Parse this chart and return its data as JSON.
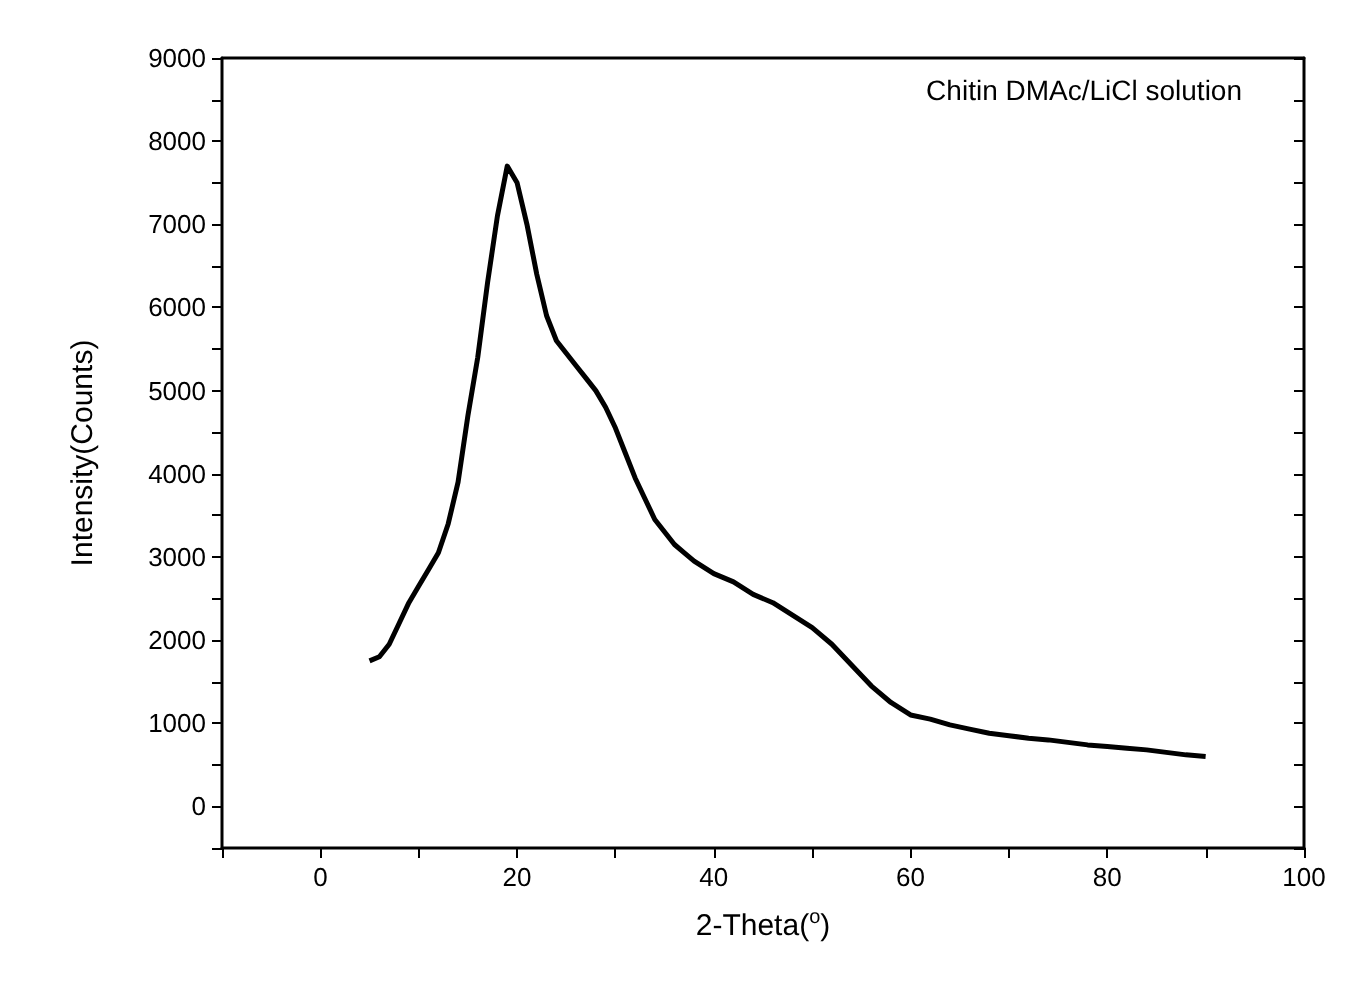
{
  "chart_data": {
    "type": "line",
    "xlabel": "2-Theta($^{o}$)",
    "ylabel": "Intensity(Counts)",
    "annotations": [
      "Chitin DMAc/LiCl solution"
    ],
    "x": [
      5,
      6,
      7,
      8,
      9,
      10,
      11,
      12,
      13,
      14,
      15,
      16,
      17,
      18,
      19,
      20,
      21,
      22,
      23,
      24,
      25,
      26,
      27,
      28,
      29,
      30,
      31,
      32,
      33,
      34,
      35,
      36,
      37,
      38,
      40,
      42,
      44,
      46,
      48,
      50,
      52,
      54,
      56,
      58,
      60,
      62,
      64,
      66,
      68,
      70,
      72,
      74,
      76,
      78,
      80,
      82,
      84,
      86,
      88,
      90
    ],
    "series": [
      {
        "color": "#000000",
        "values": [
          1750,
          1800,
          1950,
          2200,
          2450,
          2650,
          2850,
          3050,
          3400,
          3900,
          4700,
          5400,
          6300,
          7100,
          7700,
          7500,
          7000,
          6400,
          5900,
          5600,
          5450,
          5300,
          5150,
          5000,
          4800,
          4550,
          4250,
          3950,
          3700,
          3450,
          3300,
          3150,
          3050,
          2950,
          2800,
          2700,
          2550,
          2450,
          2300,
          2150,
          1950,
          1700,
          1450,
          1250,
          1100,
          1050,
          980,
          930,
          880,
          850,
          820,
          800,
          770,
          740,
          720,
          700,
          680,
          650,
          620,
          600
        ]
      }
    ],
    "xlim": [
      -10,
      100
    ],
    "xticks": [
      {
        "value": -10,
        "label": null
      },
      0,
      {
        "value": 10,
        "label": null
      },
      20,
      {
        "value": 30,
        "label": null
      },
      40,
      {
        "value": 50,
        "label": null
      },
      60,
      {
        "value": 70,
        "label": null
      },
      80,
      {
        "value": 90,
        "label": null
      },
      100
    ],
    "ylim": [
      -500,
      9000
    ],
    "yticks": [
      {
        "value": -500,
        "label": null
      },
      0,
      {
        "value": 500,
        "label": null
      },
      1000,
      {
        "value": 1500,
        "label": null
      },
      2000,
      {
        "value": 2500,
        "label": null
      },
      3000,
      {
        "value": 3500,
        "label": null
      },
      4000,
      {
        "value": 4500,
        "label": null
      },
      5000,
      {
        "value": 5500,
        "label": null
      },
      6000,
      {
        "value": 6500,
        "label": null
      },
      7000,
      {
        "value": 7500,
        "label": null
      },
      8000,
      {
        "value": 8500,
        "label": null
      },
      9000
    ],
    "grid": false,
    "marker": "none",
    "line_style": "solid"
  }
}
